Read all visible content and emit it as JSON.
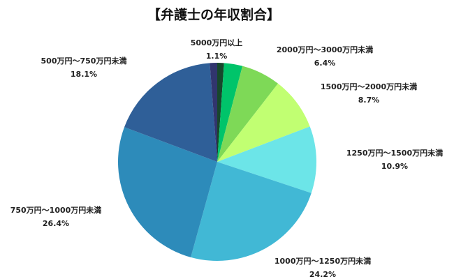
{
  "chart_data": {
    "type": "pie",
    "title": "【弁護士の年収割合】",
    "categories": [
      "5000万円以上",
      null,
      "2000万円～3000万円未満",
      "1500万円～2000万円未満",
      "1250万円～1500万円未満",
      "1000万円～1250万円未満",
      "750万円～1000万円未満",
      "500万円～750万円未満",
      null
    ],
    "values": [
      1.1,
      3.0,
      6.4,
      8.7,
      10.9,
      24.2,
      26.4,
      18.1,
      1.2
    ],
    "value_labels": [
      "1.1%",
      null,
      "6.4%",
      "8.7%",
      "10.9%",
      "24.2%",
      "26.4%",
      "18.1%",
      null
    ],
    "colors": [
      "#17472c",
      "#00c46a",
      "#7ed957",
      "#c1ff72",
      "#6ce5e8",
      "#41b8d5",
      "#2d8bba",
      "#2f5f98",
      "#31356e"
    ]
  }
}
